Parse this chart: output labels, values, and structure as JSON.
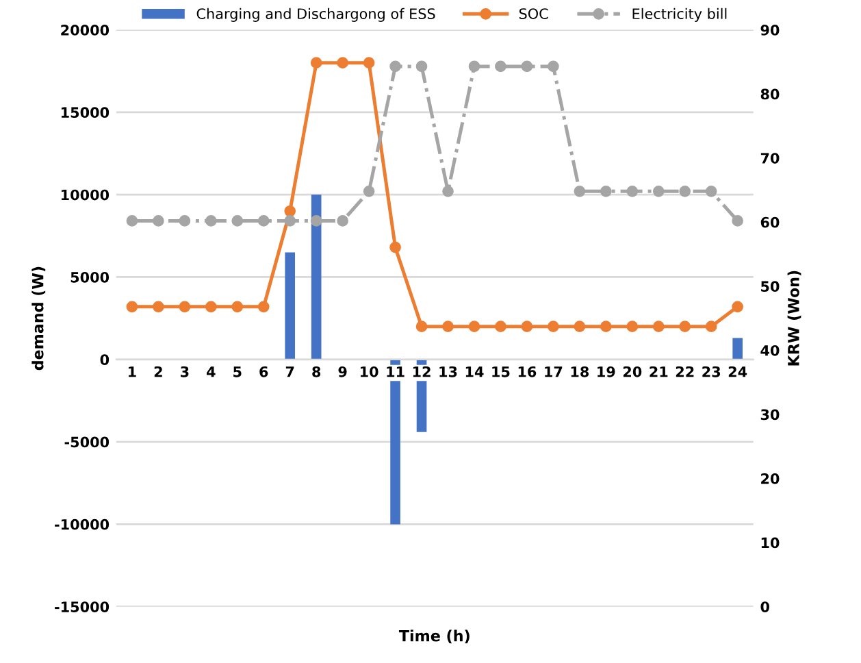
{
  "chart_data": {
    "type": "bar",
    "xlabel": "Time (h)",
    "ylabel": "demand (W)",
    "y2label": "KRW (Won)",
    "categories": [
      "1",
      "2",
      "3",
      "4",
      "5",
      "6",
      "7",
      "8",
      "9",
      "10",
      "11",
      "12",
      "13",
      "14",
      "15",
      "16",
      "17",
      "18",
      "19",
      "20",
      "21",
      "22",
      "23",
      "24"
    ],
    "series": [
      {
        "name": "Charging and Dischargong of ESS",
        "color": "#4472c4",
        "values": [
          0,
          0,
          0,
          0,
          0,
          0,
          6500,
          10000,
          0,
          0,
          -10000,
          -4400,
          0,
          0,
          0,
          0,
          0,
          0,
          0,
          0,
          0,
          0,
          0,
          1300
        ]
      },
      {
        "name": "SOC",
        "type": "line",
        "color": "#ed7d31",
        "marker": "circle",
        "line_style": "solid",
        "values": [
          3200,
          3200,
          3200,
          3200,
          3200,
          3200,
          9000,
          18000,
          18000,
          18000,
          6800,
          2000,
          2000,
          2000,
          2000,
          2000,
          2000,
          2000,
          2000,
          2000,
          2000,
          2000,
          2000,
          3200
        ]
      },
      {
        "name": "Electricity bill",
        "type": "line",
        "axis": "y2",
        "color": "#a5a5a5",
        "marker": "circle",
        "line_style": "dashdot",
        "values": [
          60.2,
          60.2,
          60.2,
          60.2,
          60.2,
          60.2,
          60.2,
          60.2,
          60.2,
          64.8,
          84.3,
          84.3,
          64.8,
          84.3,
          84.3,
          84.3,
          84.3,
          64.8,
          64.8,
          64.8,
          64.8,
          64.8,
          64.8,
          60.2
        ]
      }
    ],
    "ylim": [
      -15000,
      20000
    ],
    "yticks": [
      -15000,
      -10000,
      -5000,
      0,
      5000,
      10000,
      15000,
      20000
    ],
    "y2lim": [
      0,
      90
    ],
    "y2ticks": [
      0,
      10,
      20,
      30,
      40,
      50,
      60,
      70,
      80,
      90
    ],
    "grid": "y",
    "legend": "top"
  }
}
